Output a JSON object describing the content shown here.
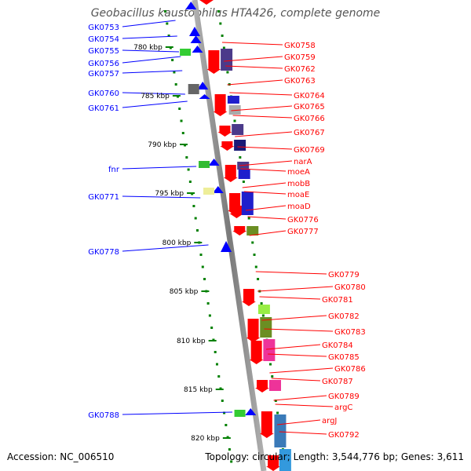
{
  "title": "Geobacillus kaustophilus HTA426, complete genome",
  "footer": {
    "accession_label": "Accession:",
    "accession": "NC_006510",
    "topology_label": "Topology:",
    "topology": "circular",
    "length_label": "Length:",
    "length": "3,544,776 bp",
    "genes_label": "Genes:",
    "genes": "3,611"
  },
  "colors": {
    "forward": "#0000ff",
    "reverse": "#ff0000",
    "ticks": "#008000",
    "backbone": "#888888"
  },
  "kbp_ticks": [
    "780 kbp",
    "785 kbp",
    "790 kbp",
    "795 kbp",
    "800 kbp",
    "805 kbp",
    "810 kbp",
    "815 kbp",
    "820 kbp"
  ],
  "genes_left": [
    "GK0753",
    "GK0754",
    "GK0755",
    "GK0756",
    "GK0757",
    "GK0760",
    "GK0761",
    "fnr",
    "GK0771",
    "GK0778",
    "GK0788"
  ],
  "genes_right": [
    "GK0758",
    "GK0759",
    "GK0762",
    "GK0763",
    "GK0764",
    "GK0765",
    "GK0766",
    "GK0767",
    "GK0769",
    "narA",
    "moeA",
    "mobB",
    "moaE",
    "moaD",
    "GK0776",
    "GK0777",
    "GK0779",
    "GK0780",
    "GK0781",
    "GK0782",
    "GK0783",
    "GK0784",
    "GK0785",
    "GK0786",
    "GK0787",
    "GK0789",
    "argC",
    "argJ",
    "GK0792"
  ]
}
